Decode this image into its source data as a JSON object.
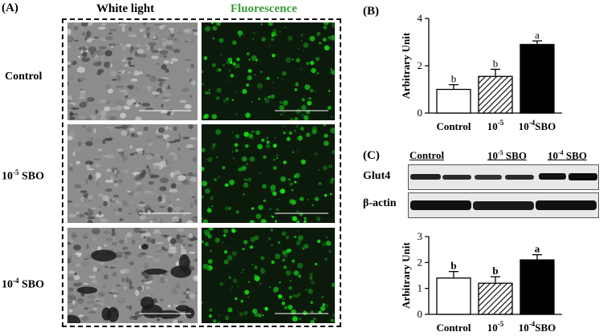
{
  "panel_a": {
    "label": "(A)",
    "col_white": "White light",
    "col_fluor": "Fluorescence",
    "rows": [
      {
        "label_main": "Control",
        "label_exp": "",
        "label_suffix": ""
      },
      {
        "label_main": "10",
        "label_exp": "-5",
        "label_suffix": " SBO"
      },
      {
        "label_main": "10",
        "label_exp": "-4",
        "label_suffix": " SBO"
      }
    ],
    "fluor_color": "#2e8b2e"
  },
  "panel_b": {
    "label": "(B)"
  },
  "panel_c": {
    "label": "(C)",
    "lanes": [
      {
        "main": "Control",
        "exp": "",
        "suffix": ""
      },
      {
        "main": "10",
        "exp": "-5",
        "suffix": " SBO"
      },
      {
        "main": "10",
        "exp": "-4",
        "suffix": " SBO"
      }
    ],
    "blot_rows": [
      "Glut4",
      "β-actin"
    ]
  },
  "chart_data": [
    {
      "type": "bar",
      "panel": "B",
      "categories": [
        "Control",
        "10^-5",
        "10^-4 SBO"
      ],
      "values": [
        1.0,
        1.55,
        2.9
      ],
      "errors": [
        0.2,
        0.3,
        0.15
      ],
      "letters": [
        "b",
        "b",
        "a"
      ],
      "ylabel": "Arbitrary Unit",
      "ylim": [
        0,
        4
      ],
      "yticks": [
        0,
        2,
        4
      ],
      "fills": [
        "white",
        "hatch",
        "black"
      ]
    },
    {
      "type": "bar",
      "panel": "C",
      "categories": [
        "Control",
        "10^-5",
        "10^-4 SBO"
      ],
      "values": [
        1.4,
        1.2,
        2.1
      ],
      "errors": [
        0.25,
        0.25,
        0.2
      ],
      "letters": [
        "b",
        "b",
        "a"
      ],
      "ylabel": "Arbitrary Unit",
      "ylim": [
        0,
        3
      ],
      "yticks": [
        0,
        1,
        2,
        3
      ],
      "fills": [
        "white",
        "hatch",
        "black"
      ]
    }
  ]
}
